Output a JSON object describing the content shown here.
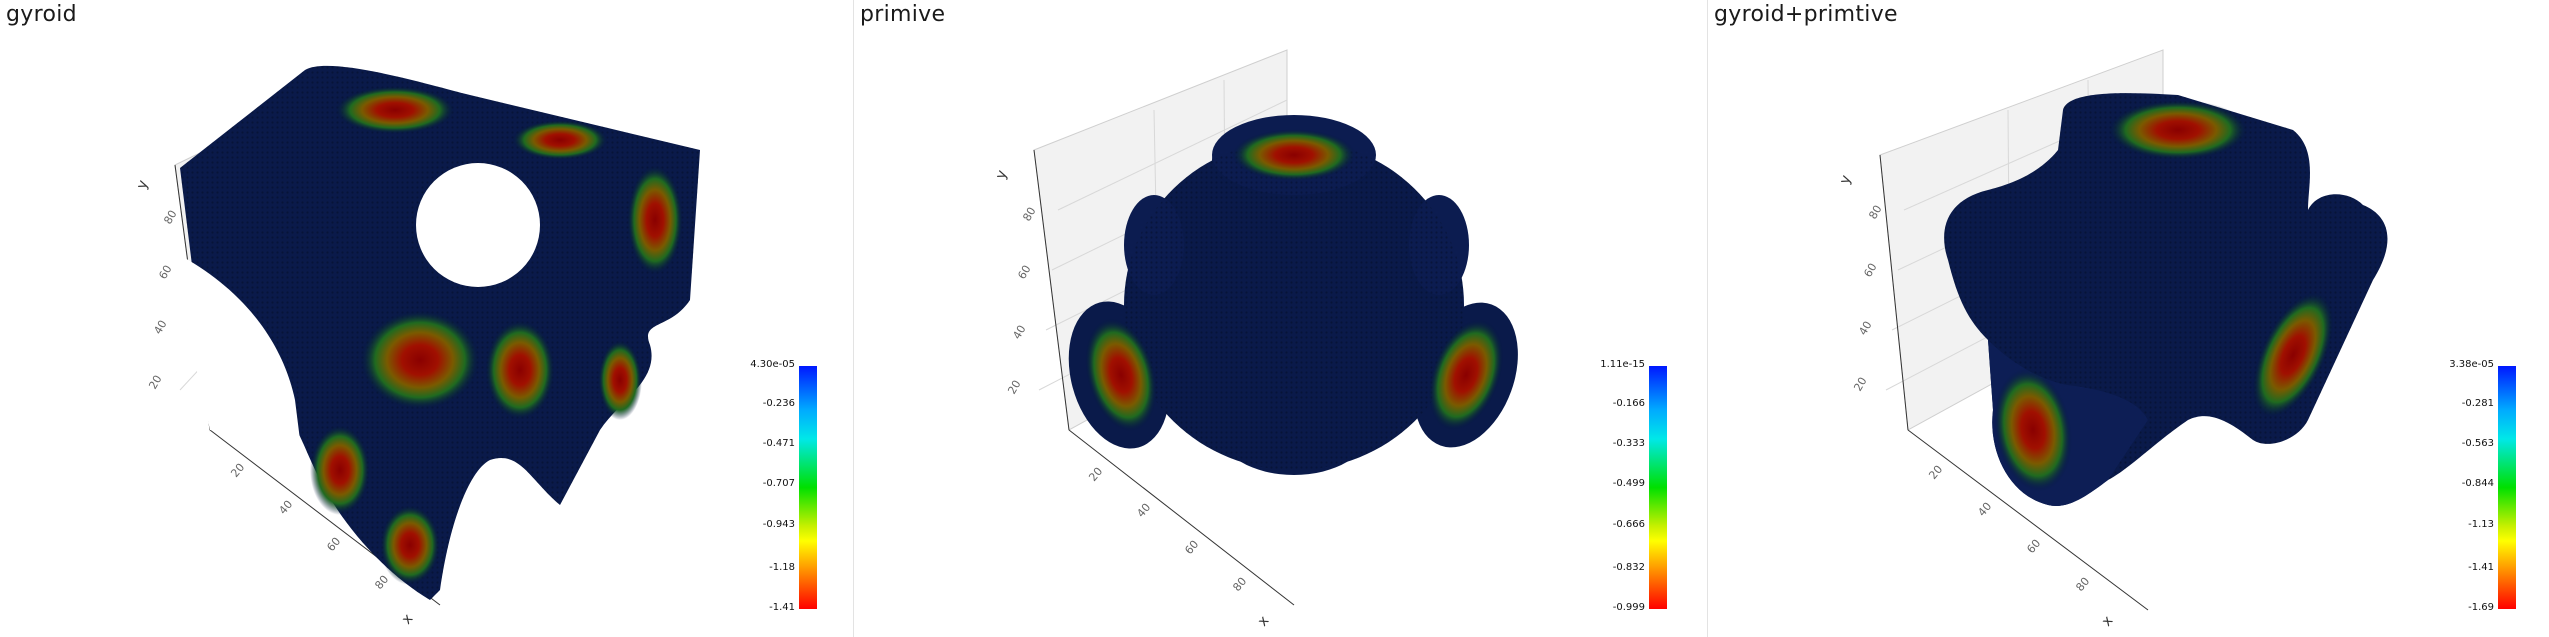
{
  "panels": [
    {
      "title": "gyroid",
      "axis_labels": {
        "y": "y",
        "x": "x"
      },
      "y_ticks": [
        "20",
        "40",
        "60",
        "80"
      ],
      "x_ticks": [
        "20",
        "40",
        "60",
        "80"
      ],
      "colorbar": {
        "labels": [
          "4.30e-05",
          "-0.236",
          "-0.471",
          "-0.707",
          "-0.943",
          "-1.18",
          "-1.41"
        ]
      },
      "colors": {
        "low": "#001040",
        "high": "#b00000"
      }
    },
    {
      "title": "primive",
      "axis_labels": {
        "y": "y",
        "x": "x"
      },
      "y_ticks": [
        "20",
        "40",
        "60",
        "80"
      ],
      "x_ticks": [
        "20",
        "40",
        "60",
        "80"
      ],
      "colorbar": {
        "labels": [
          "1.11e-15",
          "-0.166",
          "-0.333",
          "-0.499",
          "-0.666",
          "-0.832",
          "-0.999"
        ]
      },
      "colors": {
        "low": "#001040",
        "high": "#b00000"
      }
    },
    {
      "title": "gyroid+primtive",
      "axis_labels": {
        "y": "y",
        "x": "x"
      },
      "y_ticks": [
        "20",
        "40",
        "60",
        "80"
      ],
      "x_ticks": [
        "20",
        "40",
        "60",
        "80"
      ],
      "colorbar": {
        "labels": [
          "3.38e-05",
          "-0.281",
          "-0.563",
          "-0.844",
          "-1.13",
          "-1.41",
          "-1.69"
        ]
      },
      "colors": {
        "low": "#001040",
        "high": "#b00000"
      }
    }
  ]
}
